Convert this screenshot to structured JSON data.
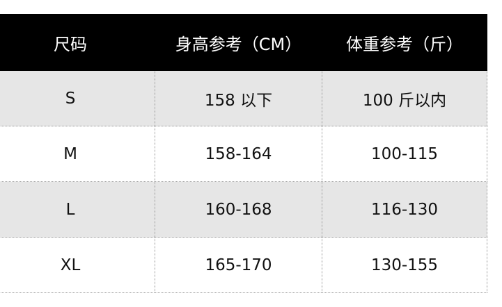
{
  "table": {
    "header": [
      "尺码",
      "身高参考（CM）",
      "体重参考（斤）"
    ],
    "rows": [
      [
        "S",
        "158 以下",
        "100 斤以内"
      ],
      [
        "M",
        "158-164",
        "100-115"
      ],
      [
        "L",
        "160-168",
        "116-130"
      ],
      [
        "XL",
        "165-170",
        "130-155"
      ]
    ]
  }
}
